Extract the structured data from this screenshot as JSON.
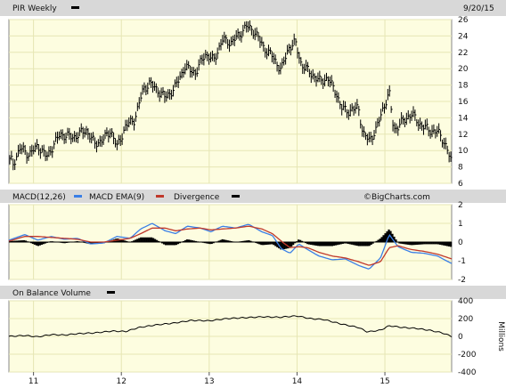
{
  "header": {
    "ticker_label": "PIR Weekly",
    "date_label": "9/20/15"
  },
  "macd_header": {
    "macd_label": "MACD(12,26)",
    "ema_label": "MACD EMA(9)",
    "div_label": "Divergence",
    "watermark": "©BigCharts.com"
  },
  "obv_header": {
    "label": "On Balance Volume"
  },
  "obv_unit": "Millions",
  "colors": {
    "pane_bg": "#fdfde0",
    "grid": "#e6e6b4",
    "price": "#000000",
    "macd": "#3a7fe6",
    "ema": "#c0392b",
    "divergence": "#000000",
    "obv": "#000000"
  },
  "chart_data": [
    {
      "type": "ohlc",
      "name": "price",
      "ylim": [
        6,
        26
      ],
      "y_ticks": [
        6,
        8,
        10,
        12,
        14,
        16,
        18,
        20,
        22,
        24,
        26
      ],
      "x_ticks": [
        11,
        12,
        13,
        14,
        15
      ],
      "x_tick_labels": [
        "11",
        "12",
        "13",
        "14",
        "15"
      ],
      "x_anchor_points": [
        [
          10.75,
          8.0
        ],
        [
          10.85,
          10.3
        ],
        [
          10.95,
          9.5
        ],
        [
          11.05,
          10.6
        ],
        [
          11.15,
          9.2
        ],
        [
          11.3,
          12.0
        ],
        [
          11.45,
          11.6
        ],
        [
          11.6,
          12.5
        ],
        [
          11.7,
          10.8
        ],
        [
          11.8,
          11.4
        ],
        [
          11.88,
          12.5
        ],
        [
          11.95,
          10.4
        ],
        [
          12.05,
          13.0
        ],
        [
          12.15,
          13.8
        ],
        [
          12.25,
          17.5
        ],
        [
          12.32,
          18.2
        ],
        [
          12.4,
          17.5
        ],
        [
          12.5,
          16.5
        ],
        [
          12.6,
          17.5
        ],
        [
          12.72,
          20.2
        ],
        [
          12.85,
          19.5
        ],
        [
          12.95,
          21.8
        ],
        [
          13.05,
          21.0
        ],
        [
          13.15,
          23.5
        ],
        [
          13.25,
          23.2
        ],
        [
          13.35,
          24.2
        ],
        [
          13.42,
          25.2
        ],
        [
          13.52,
          24.5
        ],
        [
          13.62,
          22.6
        ],
        [
          13.72,
          21.5
        ],
        [
          13.82,
          19.8
        ],
        [
          13.9,
          22.5
        ],
        [
          13.98,
          23.2
        ],
        [
          14.05,
          20.5
        ],
        [
          14.15,
          19.5
        ],
        [
          14.25,
          18.5
        ],
        [
          14.35,
          18.8
        ],
        [
          14.45,
          17.0
        ],
        [
          14.5,
          15.2
        ],
        [
          14.6,
          14.8
        ],
        [
          14.7,
          15.3
        ],
        [
          14.75,
          12.0
        ],
        [
          14.82,
          11.3
        ],
        [
          14.9,
          12.5
        ],
        [
          14.98,
          15.2
        ],
        [
          15.05,
          17.0
        ],
        [
          15.1,
          12.5
        ],
        [
          15.2,
          13.5
        ],
        [
          15.3,
          14.5
        ],
        [
          15.4,
          13.2
        ],
        [
          15.5,
          12.5
        ],
        [
          15.6,
          12.3
        ],
        [
          15.68,
          11.0
        ],
        [
          15.75,
          8.8
        ]
      ],
      "x_range": [
        10.72,
        15.76
      ]
    },
    {
      "type": "macd",
      "ylim": [
        -2,
        2
      ],
      "y_ticks": [
        -2,
        -1,
        0,
        1,
        2
      ],
      "series": [
        {
          "name": "MACD(12,26)",
          "points": [
            [
              10.72,
              0.1
            ],
            [
              10.9,
              0.4
            ],
            [
              11.05,
              0.1
            ],
            [
              11.2,
              0.3
            ],
            [
              11.35,
              0.15
            ],
            [
              11.5,
              0.2
            ],
            [
              11.65,
              -0.1
            ],
            [
              11.8,
              -0.05
            ],
            [
              11.95,
              0.3
            ],
            [
              12.1,
              0.2
            ],
            [
              12.22,
              0.7
            ],
            [
              12.35,
              1.0
            ],
            [
              12.5,
              0.6
            ],
            [
              12.62,
              0.45
            ],
            [
              12.75,
              0.85
            ],
            [
              12.9,
              0.75
            ],
            [
              13.02,
              0.55
            ],
            [
              13.15,
              0.85
            ],
            [
              13.3,
              0.75
            ],
            [
              13.45,
              0.95
            ],
            [
              13.6,
              0.55
            ],
            [
              13.72,
              0.35
            ],
            [
              13.82,
              -0.35
            ],
            [
              13.92,
              -0.6
            ],
            [
              14.02,
              -0.1
            ],
            [
              14.12,
              -0.4
            ],
            [
              14.25,
              -0.75
            ],
            [
              14.4,
              -0.95
            ],
            [
              14.55,
              -0.9
            ],
            [
              14.7,
              -1.25
            ],
            [
              14.82,
              -1.45
            ],
            [
              14.95,
              -0.85
            ],
            [
              15.05,
              0.4
            ],
            [
              15.15,
              -0.25
            ],
            [
              15.3,
              -0.55
            ],
            [
              15.45,
              -0.6
            ],
            [
              15.6,
              -0.75
            ],
            [
              15.76,
              -1.15
            ]
          ]
        },
        {
          "name": "MACD EMA(9)",
          "points": [
            [
              10.72,
              0.05
            ],
            [
              10.9,
              0.3
            ],
            [
              11.05,
              0.3
            ],
            [
              11.2,
              0.25
            ],
            [
              11.35,
              0.2
            ],
            [
              11.5,
              0.15
            ],
            [
              11.65,
              0.0
            ],
            [
              11.8,
              0.0
            ],
            [
              11.95,
              0.1
            ],
            [
              12.1,
              0.2
            ],
            [
              12.22,
              0.45
            ],
            [
              12.35,
              0.75
            ],
            [
              12.5,
              0.75
            ],
            [
              12.62,
              0.6
            ],
            [
              12.75,
              0.7
            ],
            [
              12.9,
              0.75
            ],
            [
              13.02,
              0.65
            ],
            [
              13.15,
              0.7
            ],
            [
              13.3,
              0.75
            ],
            [
              13.45,
              0.85
            ],
            [
              13.6,
              0.7
            ],
            [
              13.72,
              0.45
            ],
            [
              13.82,
              0.05
            ],
            [
              13.92,
              -0.3
            ],
            [
              14.02,
              -0.25
            ],
            [
              14.12,
              -0.3
            ],
            [
              14.25,
              -0.55
            ],
            [
              14.4,
              -0.75
            ],
            [
              14.55,
              -0.85
            ],
            [
              14.7,
              -1.05
            ],
            [
              14.82,
              -1.25
            ],
            [
              14.95,
              -1.05
            ],
            [
              15.05,
              -0.3
            ],
            [
              15.15,
              -0.2
            ],
            [
              15.3,
              -0.4
            ],
            [
              15.45,
              -0.5
            ],
            [
              15.6,
              -0.65
            ],
            [
              15.76,
              -0.9
            ]
          ]
        }
      ],
      "divergence_points": [
        [
          10.72,
          0.05
        ],
        [
          10.9,
          0.1
        ],
        [
          11.05,
          -0.2
        ],
        [
          11.2,
          0.05
        ],
        [
          11.35,
          -0.05
        ],
        [
          11.5,
          0.05
        ],
        [
          11.65,
          -0.1
        ],
        [
          11.8,
          -0.05
        ],
        [
          11.95,
          0.2
        ],
        [
          12.1,
          0.0
        ],
        [
          12.22,
          0.25
        ],
        [
          12.35,
          0.25
        ],
        [
          12.5,
          -0.15
        ],
        [
          12.62,
          -0.15
        ],
        [
          12.75,
          0.15
        ],
        [
          12.9,
          0.0
        ],
        [
          13.02,
          -0.1
        ],
        [
          13.15,
          0.15
        ],
        [
          13.3,
          0.0
        ],
        [
          13.45,
          0.1
        ],
        [
          13.6,
          -0.15
        ],
        [
          13.72,
          -0.1
        ],
        [
          13.82,
          -0.4
        ],
        [
          13.92,
          -0.3
        ],
        [
          14.02,
          0.15
        ],
        [
          14.12,
          -0.1
        ],
        [
          14.25,
          -0.2
        ],
        [
          14.4,
          -0.2
        ],
        [
          14.55,
          -0.05
        ],
        [
          14.7,
          -0.2
        ],
        [
          14.82,
          -0.2
        ],
        [
          14.95,
          0.2
        ],
        [
          15.05,
          0.7
        ],
        [
          15.15,
          -0.05
        ],
        [
          15.3,
          -0.15
        ],
        [
          15.45,
          -0.1
        ],
        [
          15.6,
          -0.1
        ],
        [
          15.76,
          -0.25
        ]
      ]
    },
    {
      "type": "line",
      "name": "On Balance Volume",
      "ylim": [
        -400,
        400
      ],
      "y_ticks": [
        -400,
        -200,
        0,
        200,
        400
      ],
      "points": [
        [
          10.72,
          0
        ],
        [
          10.9,
          10
        ],
        [
          11.05,
          -5
        ],
        [
          11.2,
          20
        ],
        [
          11.35,
          15
        ],
        [
          11.5,
          30
        ],
        [
          11.7,
          40
        ],
        [
          11.9,
          60
        ],
        [
          12.05,
          55
        ],
        [
          12.2,
          100
        ],
        [
          12.4,
          130
        ],
        [
          12.6,
          150
        ],
        [
          12.8,
          180
        ],
        [
          13.0,
          175
        ],
        [
          13.2,
          200
        ],
        [
          13.4,
          210
        ],
        [
          13.6,
          220
        ],
        [
          13.8,
          215
        ],
        [
          14.0,
          230
        ],
        [
          14.15,
          200
        ],
        [
          14.3,
          190
        ],
        [
          14.5,
          140
        ],
        [
          14.7,
          100
        ],
        [
          14.8,
          50
        ],
        [
          14.95,
          70
        ],
        [
          15.05,
          120
        ],
        [
          15.2,
          100
        ],
        [
          15.35,
          90
        ],
        [
          15.5,
          70
        ],
        [
          15.65,
          40
        ],
        [
          15.76,
          0
        ]
      ]
    }
  ]
}
